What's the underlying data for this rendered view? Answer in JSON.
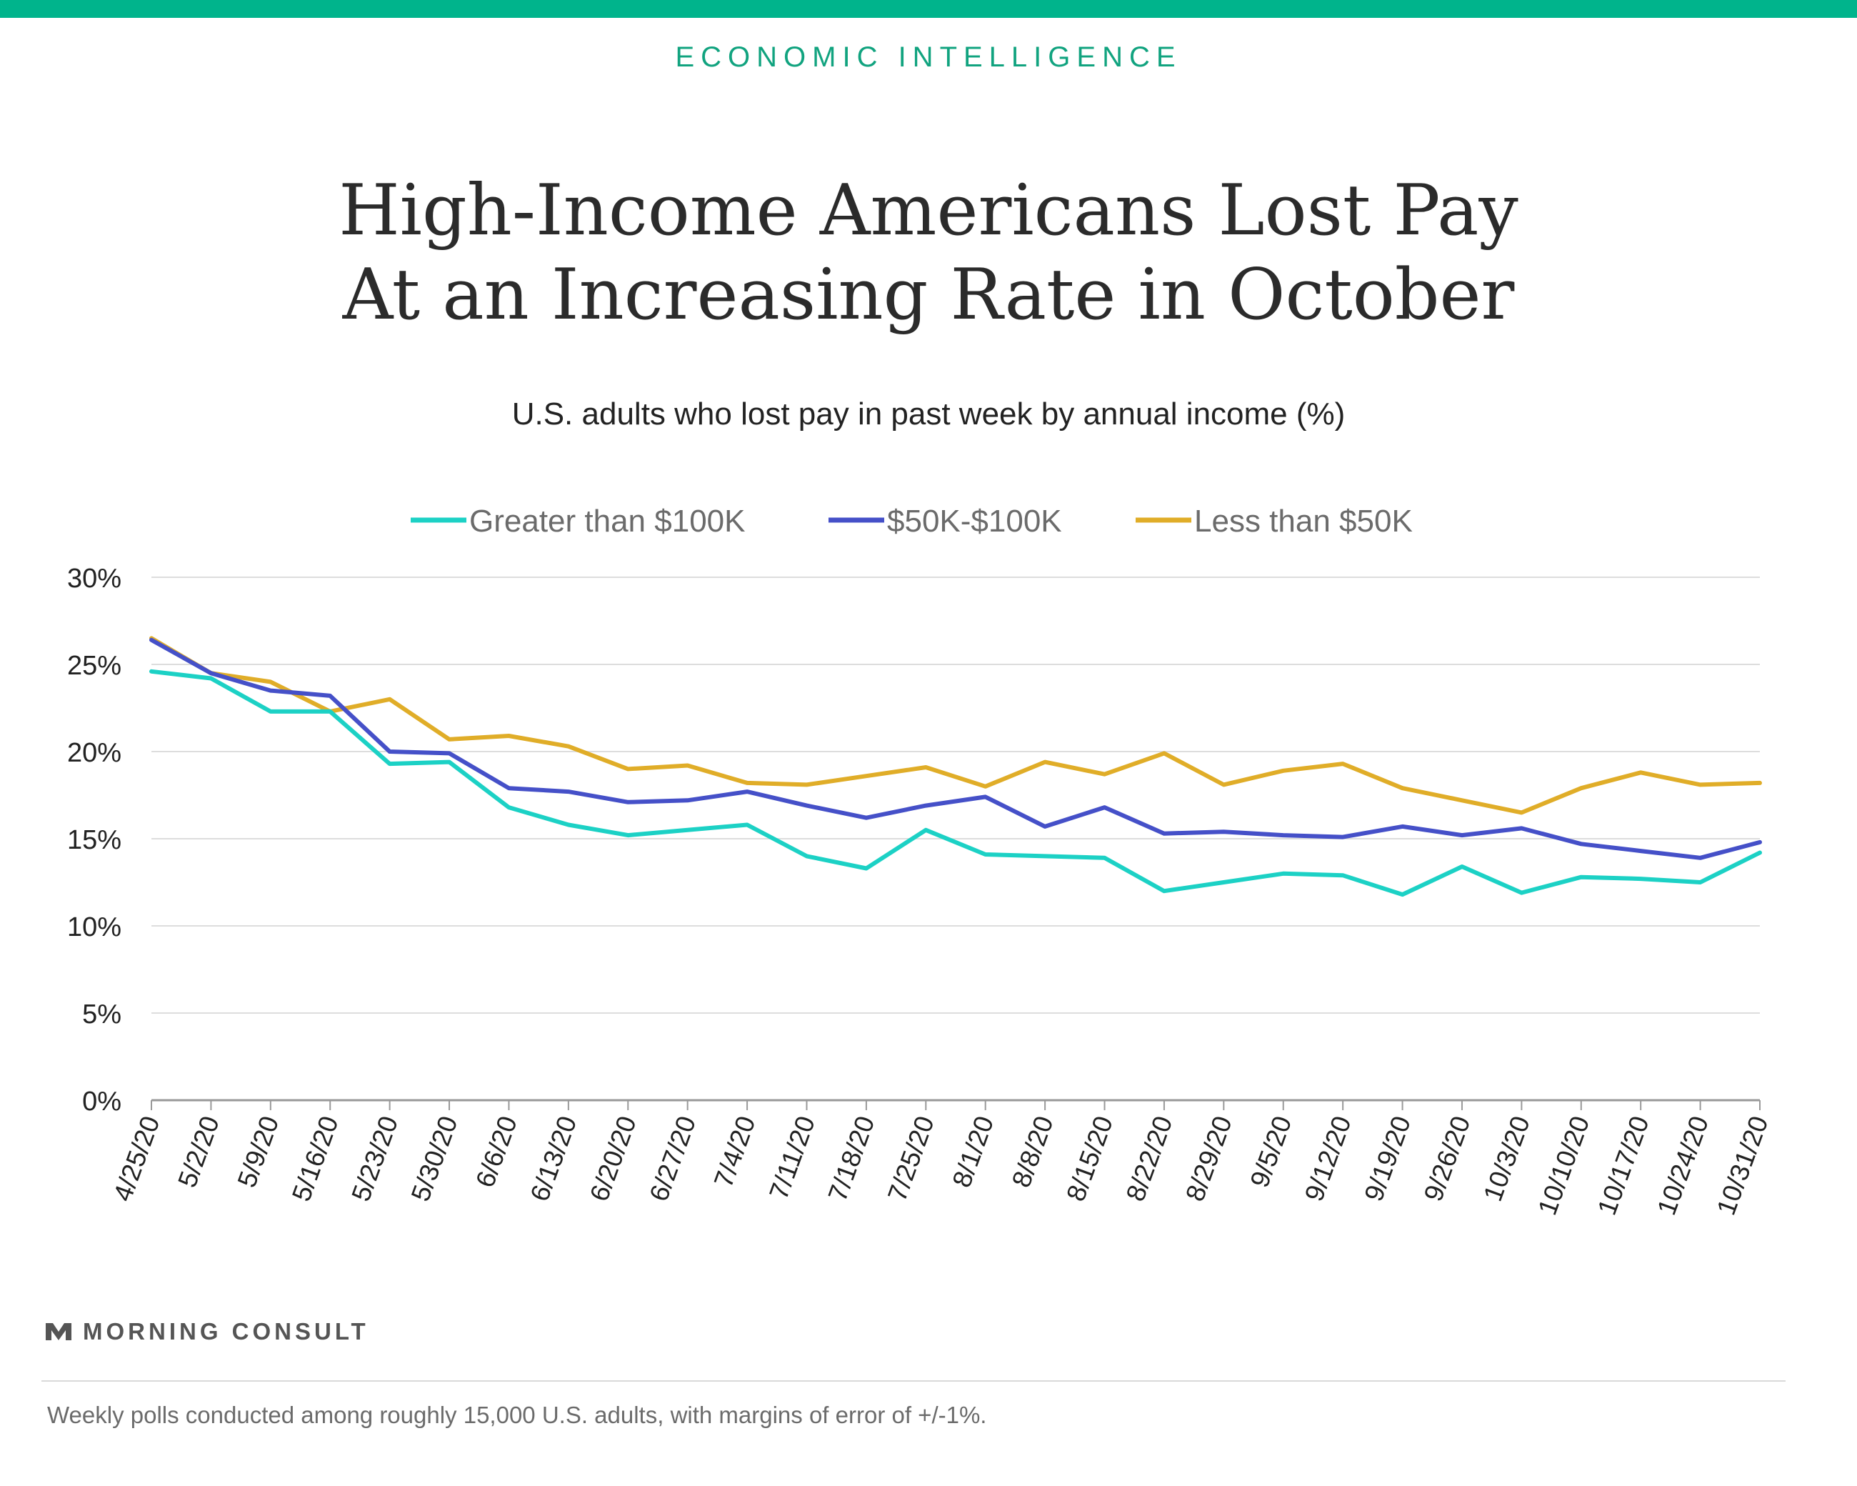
{
  "header": {
    "kicker": "ECONOMIC INTELLIGENCE",
    "accent_color": "#00b48c"
  },
  "title_lines": [
    "High-Income Americans Lost Pay",
    "At an Increasing Rate in October"
  ],
  "footer": {
    "brand": "MORNING CONSULT",
    "footnote": "Weekly polls conducted among roughly 15,000 U.S. adults, with margins of error of +/-1%.",
    "logo_icon": "morning-consult-logo-icon"
  },
  "chart_data": {
    "type": "line",
    "title": "High-Income Americans Lost Pay At an Increasing Rate in October",
    "subtitle": "U.S. adults who lost pay in past week by annual income (%)",
    "xlabel": "",
    "ylabel": "",
    "x": [
      "4/25/20",
      "5/2/20",
      "5/9/20",
      "5/16/20",
      "5/23/20",
      "5/30/20",
      "6/6/20",
      "6/13/20",
      "6/20/20",
      "6/27/20",
      "7/4/20",
      "7/11/20",
      "7/18/20",
      "7/25/20",
      "8/1/20",
      "8/8/20",
      "8/15/20",
      "8/22/20",
      "8/29/20",
      "9/5/20",
      "9/12/20",
      "9/19/20",
      "9/26/20",
      "10/3/20",
      "10/10/20",
      "10/17/20",
      "10/24/20",
      "10/31/20"
    ],
    "ylim": [
      0,
      30
    ],
    "yticks": [
      0,
      5,
      10,
      15,
      20,
      25,
      30
    ],
    "ytick_labels": [
      "0%",
      "5%",
      "10%",
      "15%",
      "20%",
      "25%",
      "30%"
    ],
    "grid": true,
    "legend_position": "top-center",
    "series": [
      {
        "name": "Greater than $100K",
        "color": "#1cd1c5",
        "values": [
          24.6,
          24.2,
          22.3,
          22.3,
          19.3,
          19.4,
          16.8,
          15.8,
          15.2,
          15.5,
          15.8,
          14.0,
          13.3,
          15.5,
          14.1,
          14.0,
          13.9,
          12.0,
          12.5,
          13.0,
          12.9,
          11.8,
          13.4,
          11.9,
          12.8,
          12.7,
          12.5,
          14.2
        ]
      },
      {
        "name": "$50K-$100K",
        "color": "#4550c8",
        "values": [
          26.4,
          24.5,
          23.5,
          23.2,
          20.0,
          19.9,
          17.9,
          17.7,
          17.1,
          17.2,
          17.7,
          16.9,
          16.2,
          16.9,
          17.4,
          15.7,
          16.8,
          15.3,
          15.4,
          15.2,
          15.1,
          15.7,
          15.2,
          15.6,
          14.7,
          14.3,
          13.9,
          14.8
        ]
      },
      {
        "name": "Less than $50K",
        "color": "#e0ad28",
        "values": [
          26.5,
          24.5,
          24.0,
          22.3,
          23.0,
          20.7,
          20.9,
          20.3,
          19.0,
          19.2,
          18.2,
          18.1,
          18.6,
          19.1,
          18.0,
          19.4,
          18.7,
          19.9,
          18.1,
          18.9,
          19.3,
          17.9,
          17.2,
          16.5,
          17.9,
          18.8,
          18.1,
          18.2
        ]
      }
    ]
  }
}
